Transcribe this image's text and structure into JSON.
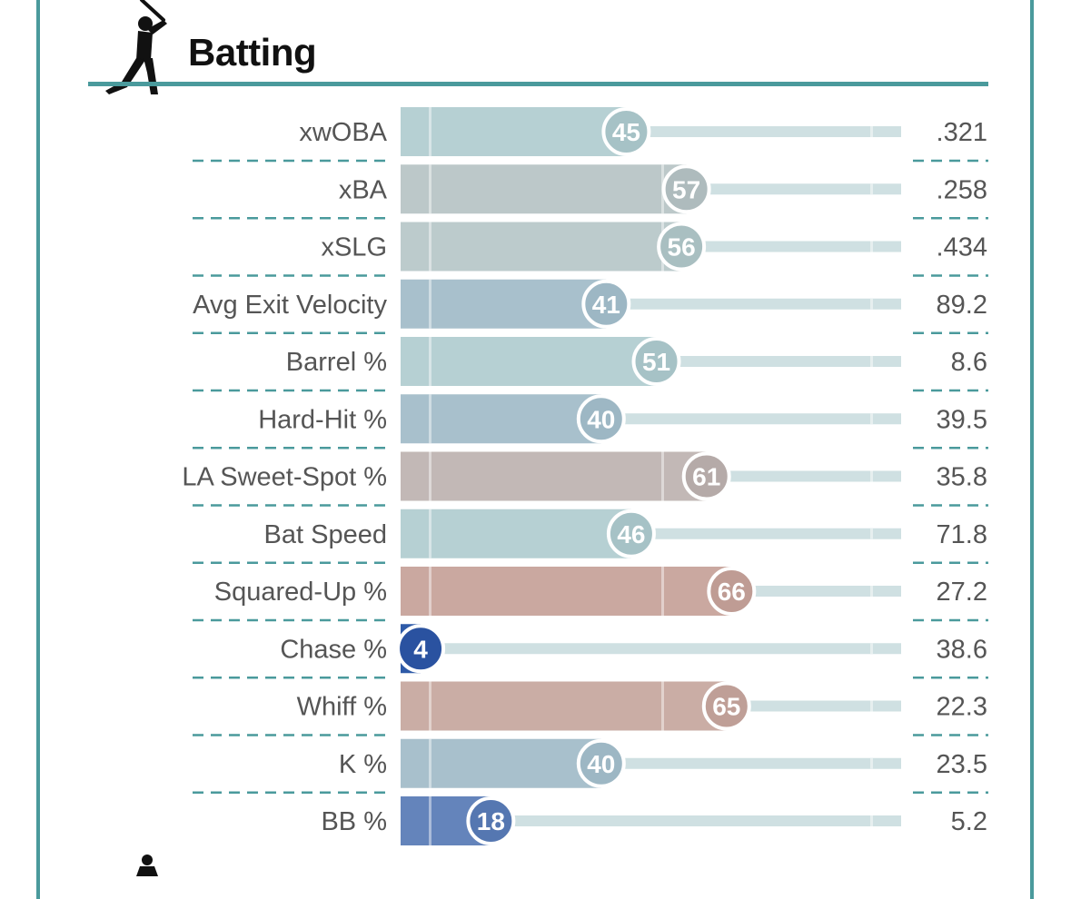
{
  "section": {
    "title": "Batting",
    "icon": "batter-silhouette-icon",
    "accent_color": "#4a9a9c"
  },
  "chart_data": {
    "type": "bar",
    "title": "Batting",
    "xlim": [
      0,
      100
    ],
    "metrics": [
      "xwOBA",
      "xBA",
      "xSLG",
      "Avg Exit Velocity",
      "Barrel %",
      "Hard-Hit %",
      "LA Sweet-Spot %",
      "Bat Speed",
      "Squared-Up %",
      "Chase %",
      "Whiff %",
      "K %",
      "BB %"
    ],
    "percentiles": [
      45,
      57,
      56,
      41,
      51,
      40,
      61,
      46,
      66,
      4,
      65,
      40,
      18
    ],
    "values": [
      ".321",
      ".258",
      ".434",
      "89.2",
      "8.6",
      "39.5",
      "35.8",
      "71.8",
      "27.2",
      "38.6",
      "22.3",
      "23.5",
      "5.2"
    ],
    "colors": [
      "#b6d0d3",
      "#bcc8c9",
      "#bccbcc",
      "#a8c0cc",
      "#b6d0d3",
      "#a8c0cc",
      "#c2b8b6",
      "#b6d0d3",
      "#caa8a0",
      "#2e5aa8",
      "#caada5",
      "#a8c0cc",
      "#6484bb"
    ],
    "circle_colors": [
      "#a6c2c6",
      "#aebbbd",
      "#a9bfc1",
      "#9db7c4",
      "#a6c2c6",
      "#9db7c4",
      "#b5aaa8",
      "#a6c2c6",
      "#bf9c94",
      "#2a52a0",
      "#bf9f97",
      "#9db7c4",
      "#5577b1"
    ],
    "track_color": "#cfe0e2"
  }
}
